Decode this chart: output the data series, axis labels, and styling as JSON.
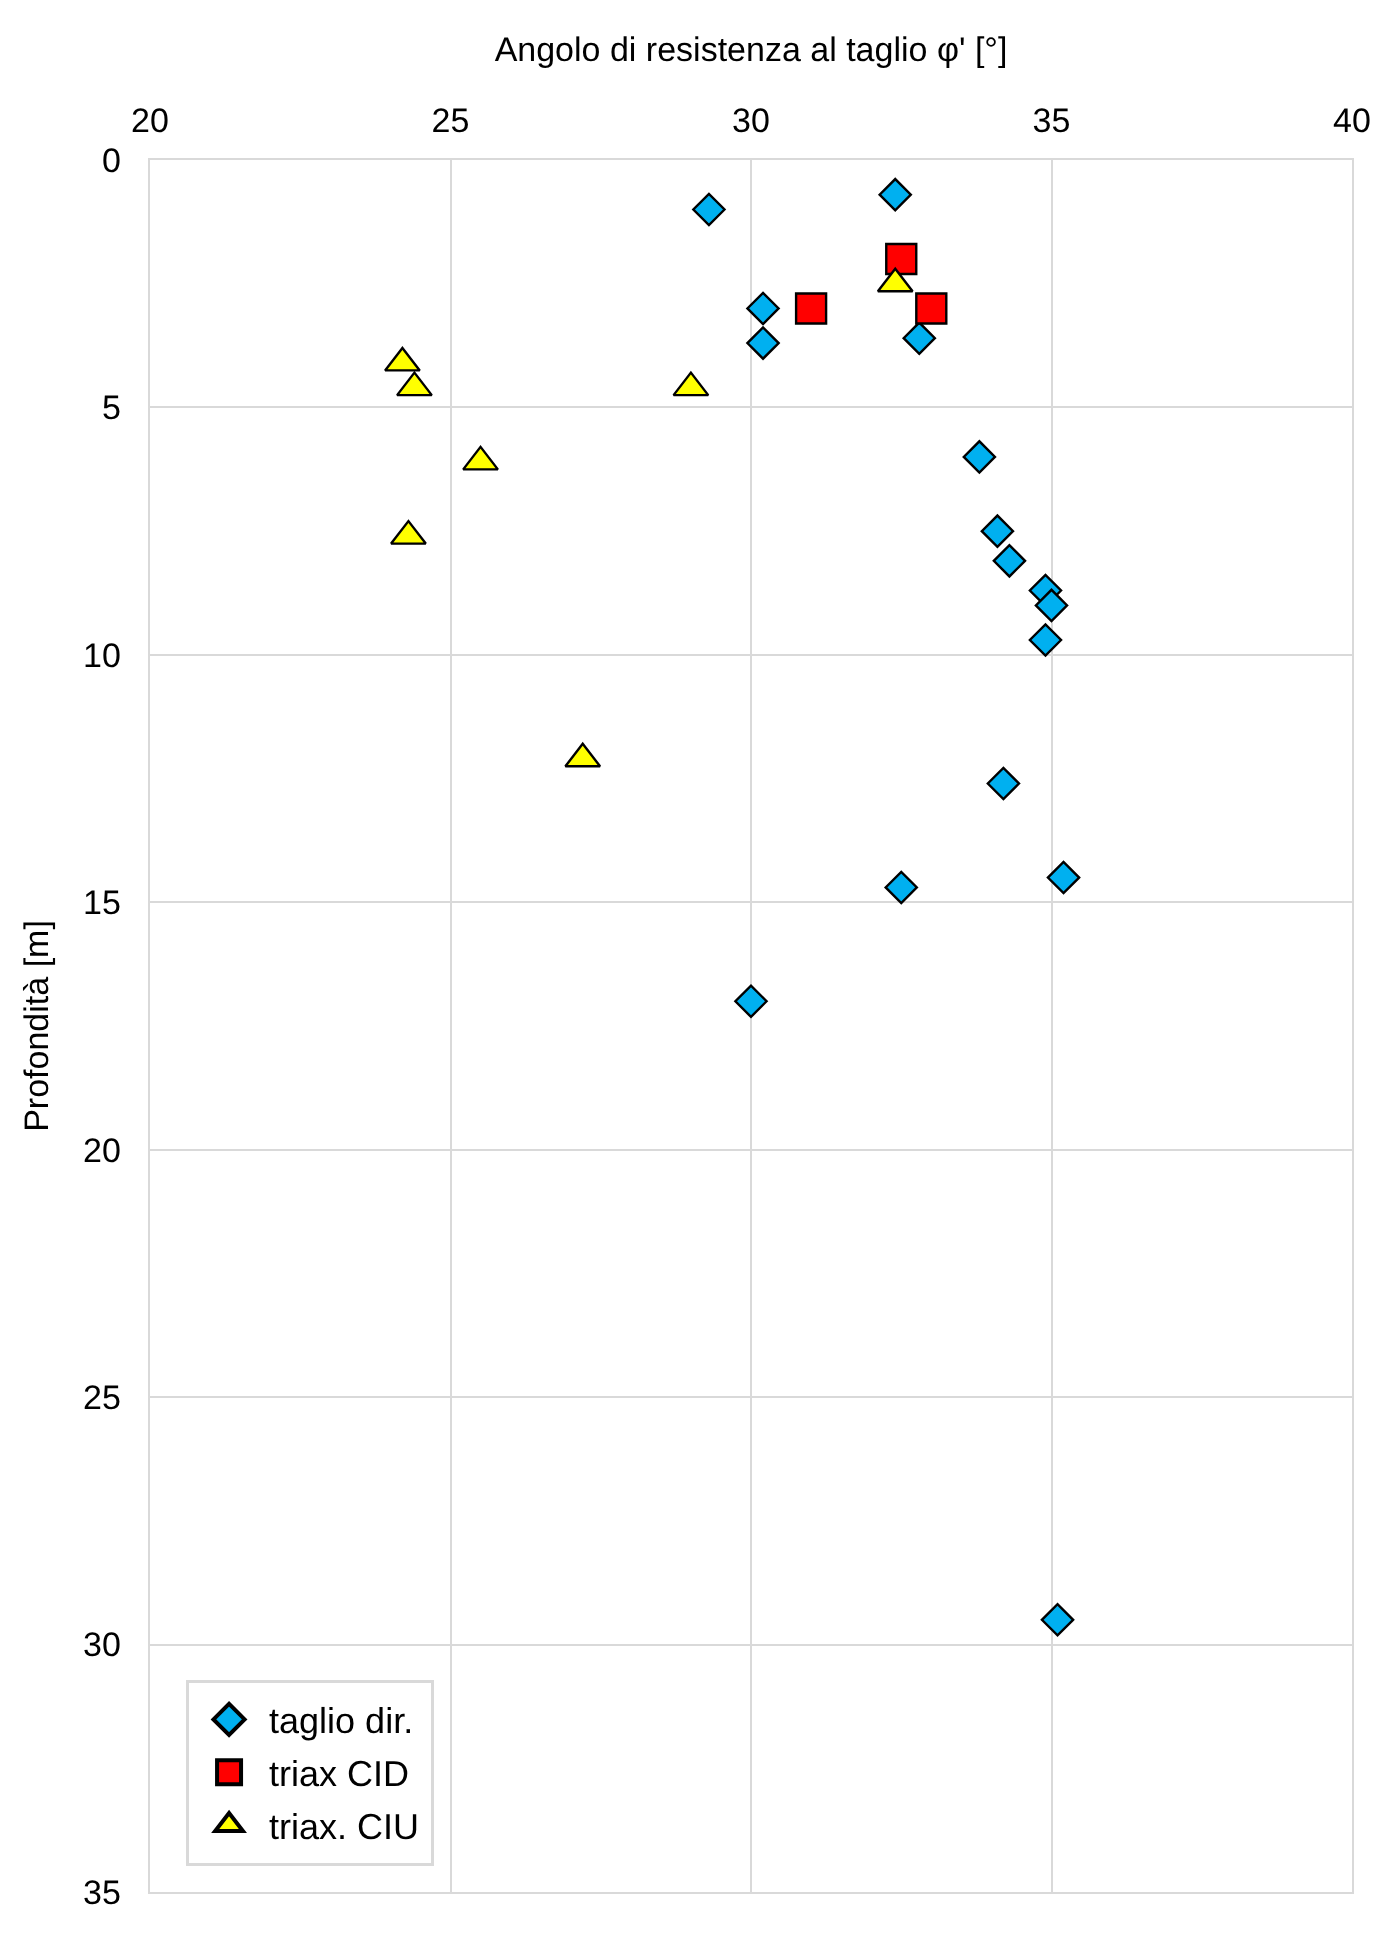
{
  "chart_data": {
    "type": "scatter",
    "xlabel": "Angolo di resistenza al taglio φ' [°]",
    "ylabel": "Profondità [m]",
    "xlim": [
      20,
      40
    ],
    "xticks": [
      20,
      25,
      30,
      35,
      40
    ],
    "ylim": [
      35,
      0
    ],
    "yticks": [
      0,
      5,
      10,
      15,
      20,
      25,
      30,
      35
    ],
    "grid": true,
    "legend": "bottom left",
    "series": [
      {
        "name": "taglio dir.",
        "color": "#00b0f0",
        "marker": "diamond",
        "x": [
          29.3,
          32.4,
          30.2,
          30.2,
          32.8,
          33.8,
          34.1,
          34.3,
          34.9,
          35.0,
          34.9,
          34.2,
          32.5,
          35.2,
          30.0,
          35.1
        ],
        "values": [
          1.0,
          0.7,
          3.0,
          3.7,
          3.6,
          6.0,
          7.5,
          8.1,
          8.7,
          9.0,
          9.7,
          12.6,
          14.7,
          14.5,
          17.0,
          29.5
        ]
      },
      {
        "name": "triax CID",
        "color": "#ff0000",
        "marker": "square",
        "x": [
          32.5,
          31.0,
          33.0
        ],
        "values": [
          2.0,
          3.0,
          3.0
        ]
      },
      {
        "name": "triax. CIU",
        "color": "#ffff00",
        "marker": "triangle",
        "x": [
          32.4,
          24.2,
          24.4,
          29.0,
          25.5,
          24.3,
          27.2
        ],
        "values": [
          2.5,
          4.1,
          4.6,
          4.6,
          6.1,
          7.6,
          12.1
        ]
      }
    ]
  }
}
